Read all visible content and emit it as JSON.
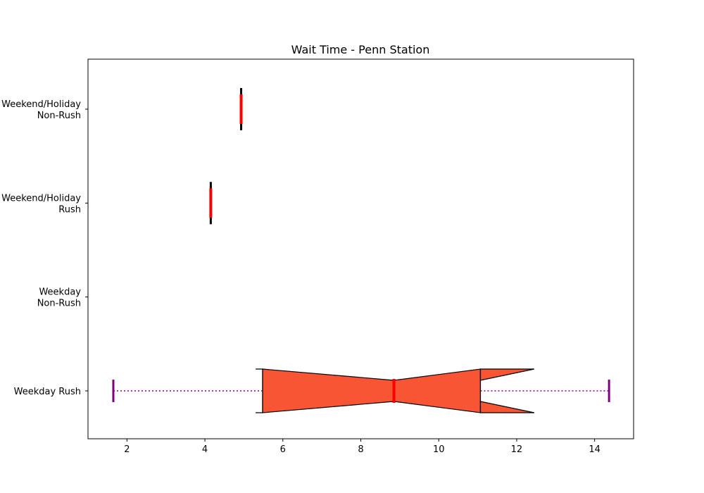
{
  "chart_data": {
    "type": "boxplot",
    "orientation": "horizontal",
    "title": "Wait Time - Penn Station",
    "xlabel": "",
    "ylabel": "",
    "xlim": [
      1,
      15
    ],
    "x_ticks": [
      2,
      4,
      6,
      8,
      10,
      12,
      14
    ],
    "grid": false,
    "categories": [
      {
        "label_lines": [
          "Weekday Rush"
        ]
      },
      {
        "label_lines": [
          "Weekday",
          "Non-Rush"
        ]
      },
      {
        "label_lines": [
          "Weekend/Holiday",
          "Rush"
        ]
      },
      {
        "label_lines": [
          "Weekend/Holiday",
          "Non-Rush"
        ]
      }
    ],
    "boxes": [
      {
        "category": "Weekday Rush",
        "whisker_low": 1.65,
        "q1": 5.48,
        "median": 8.85,
        "q3": 11.07,
        "whisker_high": 14.37,
        "notch_low": 5.3,
        "notch_high": 12.45,
        "notched": true
      },
      {
        "category": "Weekday Non-Rush",
        "empty": true
      },
      {
        "category": "Weekend/Holiday Rush",
        "whisker_low": 4.15,
        "q1": 4.15,
        "median": 4.15,
        "q3": 4.15,
        "whisker_high": 4.15
      },
      {
        "category": "Weekend/Holiday Non-Rush",
        "whisker_low": 4.93,
        "q1": 4.93,
        "median": 4.93,
        "q3": 4.93,
        "whisker_high": 4.93
      }
    ],
    "colors": {
      "box_fill": "#f75533",
      "box_edge": "#000000",
      "median": "#ff0000",
      "whisker": "#800080",
      "cap": "#800080",
      "flat_box_edge": "#000000"
    }
  }
}
